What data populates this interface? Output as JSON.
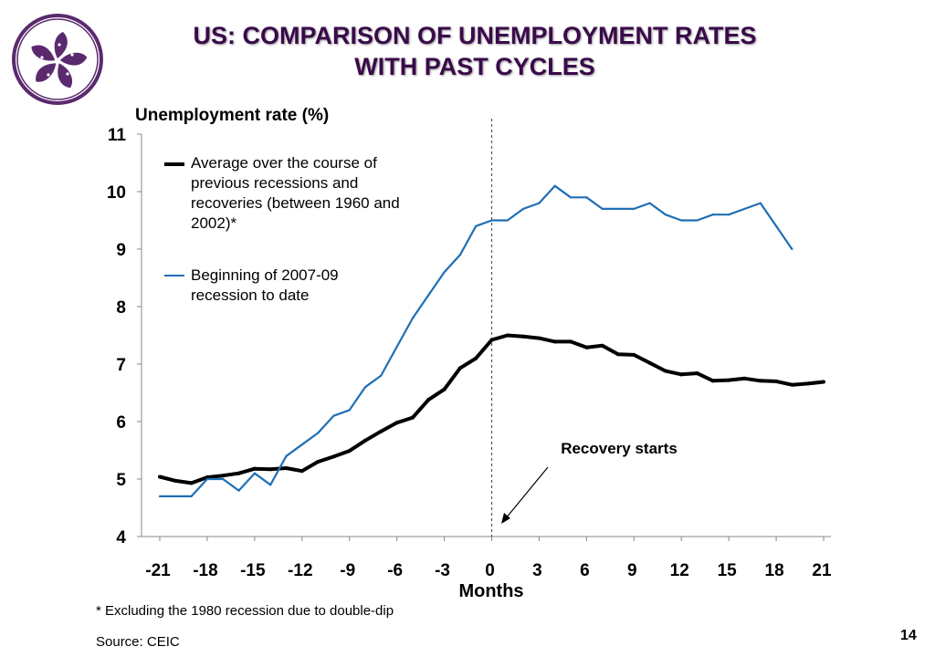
{
  "slide": {
    "title_line1": "US: COMPARISON OF UNEMPLOYMENT RATES",
    "title_line2": "WITH PAST CYCLES",
    "footnote": "* Excluding the 1980 recession due to double-dip",
    "source": "Source: CEIC",
    "page_number": "14"
  },
  "colors": {
    "title": "#3a0a4a",
    "logo": "#5b2a6e",
    "average_series": "#000000",
    "current_series": "#1f6fb5"
  },
  "chart_data": {
    "type": "line",
    "ylabel": "Unemployment rate (%)",
    "xlabel": "Months",
    "ylim": [
      4,
      11
    ],
    "xlim": [
      -21,
      21
    ],
    "yticks": [
      "4",
      "5",
      "6",
      "7",
      "8",
      "9",
      "10",
      "11"
    ],
    "xticks": [
      "-21",
      "-18",
      "-15",
      "-12",
      "-9",
      "-6",
      "-3",
      "0",
      "3",
      "6",
      "9",
      "12",
      "15",
      "18",
      "21"
    ],
    "annotation": {
      "text": "Recovery starts",
      "x": 0
    },
    "legend_position": "top-left",
    "series": [
      {
        "name": "Average over the course of previous recessions and recoveries (between 1960 and 2002)*",
        "name_lines": [
          "Average over the course of",
          "previous recessions and",
          "recoveries (between 1960 and",
          "2002)*"
        ],
        "color": "#000000",
        "x": [
          -21,
          -20,
          -19,
          -18,
          -17,
          -16,
          -15,
          -14,
          -13,
          -12,
          -11,
          -10,
          -9,
          -8,
          -7,
          -6,
          -5,
          -4,
          -3,
          -2,
          -1,
          0,
          1,
          2,
          3,
          4,
          5,
          6,
          7,
          8,
          9,
          10,
          11,
          12,
          13,
          14,
          15,
          16,
          17,
          18,
          19,
          20,
          21
        ],
        "values": [
          5.04,
          4.97,
          4.93,
          5.03,
          5.06,
          5.1,
          5.18,
          5.17,
          5.19,
          5.14,
          5.3,
          5.39,
          5.49,
          5.67,
          5.83,
          5.98,
          6.07,
          6.38,
          6.56,
          6.93,
          7.1,
          7.42,
          7.5,
          7.48,
          7.45,
          7.39,
          7.39,
          7.29,
          7.32,
          7.17,
          7.16,
          7.02,
          6.88,
          6.82,
          6.84,
          6.71,
          6.72,
          6.75,
          6.71,
          6.7,
          6.64,
          6.66,
          6.69
        ]
      },
      {
        "name": "Beginning of 2007-09 recession to date",
        "name_lines": [
          "Beginning of 2007-09",
          "recession to date"
        ],
        "color": "#1f6fb5",
        "x": [
          -21,
          -20,
          -19,
          -18,
          -17,
          -16,
          -15,
          -14,
          -13,
          -12,
          -11,
          -10,
          -9,
          -8,
          -7,
          -6,
          -5,
          -4,
          -3,
          -2,
          -1,
          0,
          1,
          2,
          3,
          4,
          5,
          6,
          7,
          8,
          9,
          10,
          11,
          12,
          13,
          14,
          15,
          16,
          17,
          18,
          19
        ],
        "values": [
          4.7,
          4.7,
          4.7,
          5.0,
          5.0,
          4.8,
          5.1,
          4.9,
          5.4,
          5.6,
          5.8,
          6.1,
          6.2,
          6.6,
          6.8,
          7.3,
          7.8,
          8.2,
          8.6,
          8.9,
          9.4,
          9.5,
          9.5,
          9.7,
          9.8,
          10.1,
          9.9,
          9.9,
          9.7,
          9.7,
          9.7,
          9.8,
          9.6,
          9.5,
          9.5,
          9.6,
          9.6,
          9.7,
          9.8,
          9.4,
          9.0
        ]
      }
    ]
  }
}
